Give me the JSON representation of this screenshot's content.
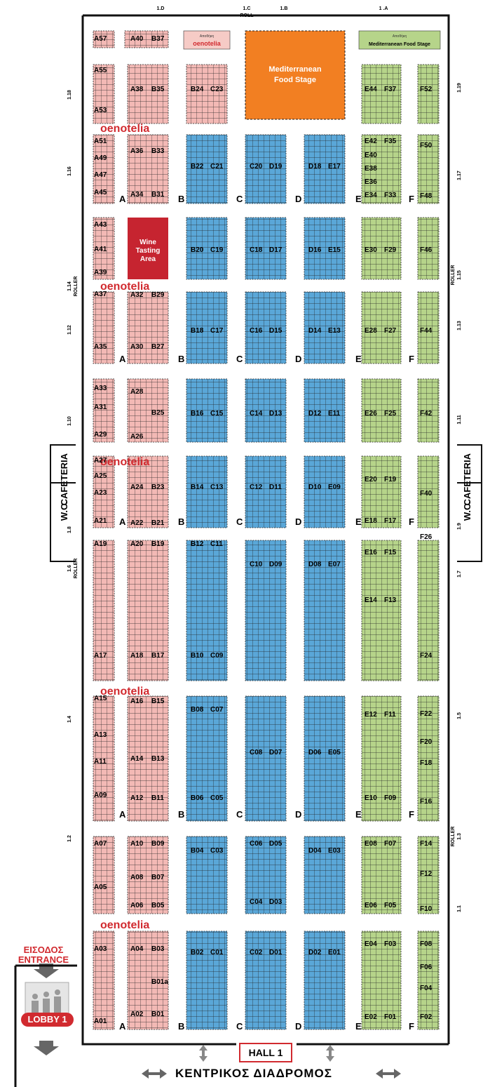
{
  "doors_top": [
    "1.D",
    "1.C",
    "ROLL",
    "1.B",
    "1 .A"
  ],
  "doors_left": [
    "1.18",
    "1.16",
    "1.14",
    "ROLLER",
    "1.12",
    "1.10",
    "1.8",
    "1.6",
    "ROLLER",
    "1.4",
    "1.2"
  ],
  "doors_right": [
    "1.19",
    "1.17",
    "1.15",
    "ROLLER",
    "1.13",
    "1.11",
    "1.9",
    "1.7",
    "1.5",
    "1.3",
    "ROLLER",
    "1.1"
  ],
  "lane_labels": [
    "A",
    "B",
    "C",
    "D",
    "E",
    "F"
  ],
  "features": {
    "oenotelia_brand": "oenotelia",
    "oenotelia_small_label": "Αποθήκη",
    "food_stage_small_label": "Αποθήκη",
    "food_stage_sign": "Mediterranean Food Stage",
    "food_stage_l1": "Mediterranean",
    "food_stage_l2": "Food Stage",
    "wine_l1": "Wine",
    "wine_l2": "Tasting",
    "wine_l3": "Area",
    "cafeteria": "CAFETERIA",
    "wc": "W.C."
  },
  "entrance": {
    "gr": "ΕΙΣΟΔΟΣ",
    "en": "ENTRANCE",
    "lobby": "LOBBY 1"
  },
  "hall": "HALL 1",
  "corridor": "ΚΕΝΤΡΙΚΟΣ ΔΙΑΔΡΟΜΟΣ",
  "colors": {
    "pink": "#f3b9b5",
    "blue": "#5aa7d8",
    "green": "#b6d48a",
    "orange": "#f27f22",
    "red": "#c62430",
    "brand": "#d12a2f"
  },
  "stands": [
    "A57",
    "A55",
    "A53",
    "A51",
    "A49",
    "A47",
    "A45",
    "A43",
    "A41",
    "A39",
    "A37",
    "A35",
    "A33",
    "A31",
    "A29",
    "A27",
    "A25",
    "A23",
    "A21",
    "A19",
    "A17",
    "A15",
    "A13",
    "A11",
    "A09",
    "A07",
    "A05",
    "A03",
    "A01",
    "A40",
    "B37",
    "A38",
    "B35",
    "A36",
    "B33",
    "A34",
    "B31",
    "A32",
    "B29",
    "A30",
    "B27",
    "A28",
    "B25",
    "A26",
    "A24",
    "B23",
    "A22",
    "B21",
    "A20",
    "B19",
    "A18",
    "B17",
    "A16",
    "B15",
    "A14",
    "B13",
    "A12",
    "B11",
    "A10",
    "B09",
    "A08",
    "B07",
    "A06",
    "B05",
    "A04",
    "B03",
    "B01a",
    "A02",
    "B01",
    "B24",
    "C23",
    "B22",
    "C21",
    "B20",
    "C19",
    "B18",
    "C17",
    "B16",
    "C15",
    "B14",
    "C13",
    "B12",
    "C11",
    "B10",
    "C09",
    "B08",
    "C07",
    "B06",
    "C05",
    "B04",
    "C03",
    "B02",
    "C01",
    "C20",
    "D19",
    "C18",
    "D17",
    "C16",
    "D15",
    "C14",
    "D13",
    "C12",
    "D11",
    "C10",
    "D09",
    "C08",
    "D07",
    "C06",
    "D05",
    "C04",
    "D03",
    "C02",
    "D01",
    "D18",
    "E17",
    "D16",
    "E15",
    "D14",
    "E13",
    "D12",
    "E11",
    "D10",
    "E09",
    "D08",
    "E07",
    "D06",
    "E05",
    "D04",
    "E03",
    "D02",
    "E01",
    "E44",
    "F37",
    "E42",
    "F35",
    "E40",
    "E38",
    "E36",
    "E34",
    "F33",
    "E30",
    "F29",
    "E28",
    "F27",
    "E26",
    "F25",
    "E20",
    "F19",
    "E18",
    "F17",
    "E16",
    "F15",
    "E14",
    "F13",
    "E12",
    "F11",
    "E10",
    "F09",
    "E08",
    "F07",
    "E06",
    "F05",
    "E04",
    "F03",
    "E02",
    "F01",
    "F52",
    "F50",
    "F48",
    "F46",
    "F44",
    "F42",
    "F40",
    "F26",
    "F24",
    "F22",
    "F20",
    "F18",
    "F16",
    "F14",
    "F12",
    "F10",
    "F08",
    "F06",
    "F04",
    "F02"
  ]
}
